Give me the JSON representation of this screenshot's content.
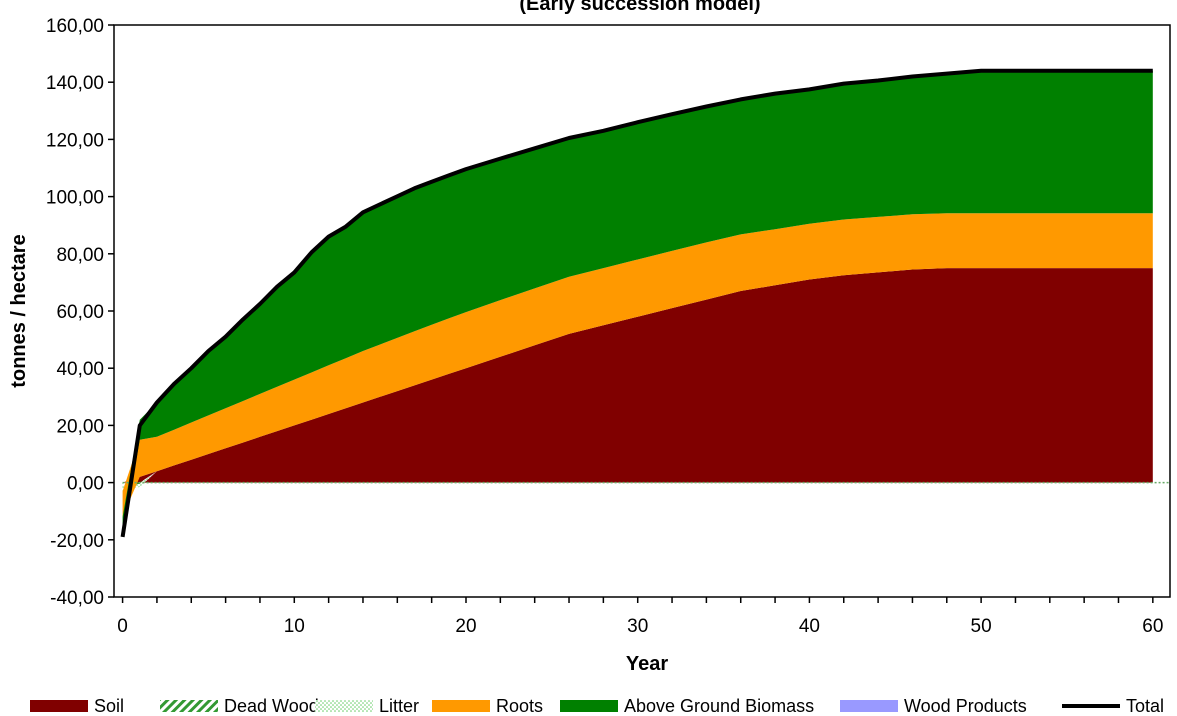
{
  "chart_data": {
    "type": "area",
    "title": "(Early succession model)",
    "xlabel": "Year",
    "ylabel": "tonnes / hectare",
    "xlim": [
      -0.5,
      61
    ],
    "ylim": [
      -40,
      160
    ],
    "x_ticks": [
      0,
      10,
      20,
      30,
      40,
      50,
      60
    ],
    "y_ticks": [
      "-40,00",
      "-20,00",
      "0,00",
      "20,00",
      "40,00",
      "60,00",
      "80,00",
      "100,00",
      "120,00",
      "140,00",
      "160,00"
    ],
    "grid": false,
    "legend_position": "bottom",
    "x": [
      0,
      1,
      2,
      3,
      4,
      5,
      6,
      7,
      8,
      9,
      10,
      11,
      12,
      13,
      14,
      15,
      16,
      17,
      18,
      19,
      20,
      22,
      24,
      26,
      28,
      30,
      32,
      34,
      36,
      38,
      40,
      42,
      44,
      46,
      48,
      50,
      52,
      54,
      56,
      58,
      60
    ],
    "series": [
      {
        "name": "Soil",
        "color": "#800000",
        "values": [
          0,
          2,
          4,
          6,
          8,
          10,
          12,
          14,
          16,
          18,
          20,
          22,
          24,
          26,
          28,
          30,
          32,
          34,
          36,
          38,
          40,
          44,
          48,
          52,
          55,
          58,
          61,
          64,
          67,
          69,
          71,
          72.5,
          73.5,
          74.5,
          75,
          75,
          75,
          75,
          75,
          75,
          75
        ]
      },
      {
        "name": "Dead Wood",
        "color": "#339933",
        "values": [
          -1,
          -0.5,
          0,
          0,
          0,
          0,
          0,
          0,
          0,
          0,
          0,
          0,
          0,
          0,
          0,
          0,
          0,
          0,
          0,
          0,
          0,
          0,
          0,
          0,
          0,
          0,
          0,
          0,
          0,
          0,
          0,
          0,
          0,
          0,
          0,
          0,
          0,
          0,
          0,
          0,
          0
        ]
      },
      {
        "name": "Litter",
        "color": "#66cc66",
        "values": [
          -2,
          -1,
          0,
          0,
          0,
          0,
          0,
          0,
          0,
          0,
          0,
          0,
          0,
          0,
          0,
          0,
          0,
          0,
          0,
          0,
          0,
          0,
          0,
          0,
          0,
          0,
          0,
          0,
          0,
          0,
          0,
          0,
          0,
          0,
          0,
          0,
          0,
          0,
          0,
          0,
          0
        ]
      },
      {
        "name": "Roots",
        "color": "#ff9900",
        "values": [
          -9,
          13,
          12,
          12.5,
          13,
          13.5,
          14,
          14.5,
          15,
          15.5,
          16,
          16.5,
          17,
          17.5,
          18,
          18.3,
          18.6,
          18.9,
          19.2,
          19.4,
          19.6,
          19.8,
          19.9,
          20,
          20,
          20,
          20,
          20,
          19.8,
          19.6,
          19.5,
          19.5,
          19.4,
          19.3,
          19.2,
          19.2,
          19.2,
          19.2,
          19.2,
          19.2,
          19.2
        ]
      },
      {
        "name": "Above Ground Biomass",
        "color": "#008000",
        "values": [
          -7,
          7,
          12,
          16,
          19,
          22.5,
          25,
          28.5,
          31.5,
          35,
          37.5,
          42,
          45,
          46,
          48.5,
          49,
          49.5,
          50,
          50,
          50,
          50,
          49.5,
          49,
          48.5,
          48,
          48,
          47.8,
          47.5,
          47.2,
          47.4,
          47,
          47.5,
          47.7,
          48.2,
          48.8,
          49.8,
          49.8,
          49.8,
          49.8,
          49.8,
          49.8
        ]
      },
      {
        "name": "Wood Products",
        "color": "#9999ff",
        "values": [
          0,
          0,
          0,
          0,
          0,
          0,
          0,
          0,
          0,
          0,
          0,
          0,
          0,
          0,
          0,
          0,
          0,
          0,
          0,
          0,
          0,
          0,
          0,
          0,
          0,
          0,
          0,
          0,
          0,
          0,
          0,
          0,
          0,
          0,
          0,
          0,
          0,
          0,
          0,
          0,
          0
        ]
      },
      {
        "name": "Total",
        "color": "#000000",
        "kind": "line",
        "values": [
          -19,
          20,
          28,
          34.5,
          40,
          46,
          51,
          57,
          62.5,
          68.5,
          73.5,
          80.5,
          86,
          89.5,
          94.5,
          97.3,
          100.1,
          102.9,
          105.2,
          107.4,
          109.6,
          113.3,
          116.9,
          120.5,
          123,
          126,
          128.8,
          131.5,
          134,
          136,
          137.5,
          139.5,
          140.6,
          142,
          143,
          144,
          144,
          144,
          144,
          144,
          144
        ]
      }
    ]
  }
}
